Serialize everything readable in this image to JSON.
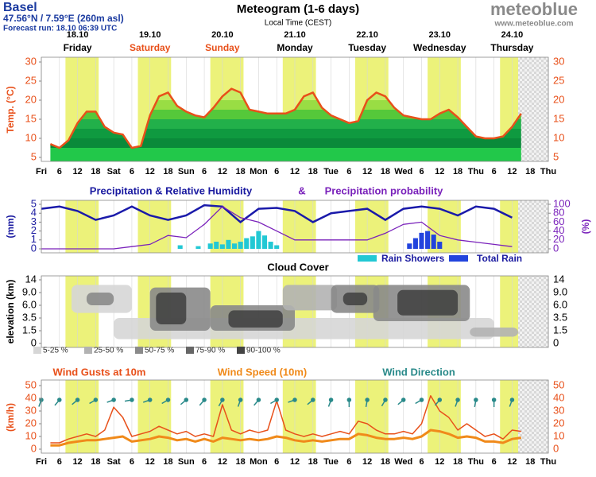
{
  "header": {
    "place": "Basel",
    "coords": "47.56°N / 7.59°E (260m asl)",
    "run": "Forecast run: 18.10 06:39 UTC",
    "title": "Meteogram (1-6 days)",
    "subtitle": "Local Time (CEST)",
    "logo": "meteoblue",
    "url": "www.meteoblue.com"
  },
  "days": [
    {
      "date": "18.10",
      "name": "Friday",
      "color": "#000000"
    },
    {
      "date": "19.10",
      "name": "Saturday",
      "color": "#e8501a"
    },
    {
      "date": "20.10",
      "name": "Sunday",
      "color": "#e8501a"
    },
    {
      "date": "21.10",
      "name": "Monday",
      "color": "#000000"
    },
    {
      "date": "22.10",
      "name": "Tuesday",
      "color": "#000000"
    },
    {
      "date": "23.10",
      "name": "Wednesday",
      "color": "#000000"
    },
    {
      "date": "24.10",
      "name": "Thursday",
      "color": "#000000"
    }
  ],
  "x_axis": {
    "xlim": [
      0,
      168
    ],
    "daylight": [
      8,
      19
    ],
    "forecast_end_hour": 158,
    "xticks": [
      {
        "value": 0,
        "label": "Fri"
      },
      {
        "value": 6,
        "label": "6"
      },
      {
        "value": 12,
        "label": "12"
      },
      {
        "value": 18,
        "label": "18"
      },
      {
        "value": 24,
        "label": "Sat"
      },
      {
        "value": 30,
        "label": "6"
      },
      {
        "value": 36,
        "label": "12"
      },
      {
        "value": 42,
        "label": "18"
      },
      {
        "value": 48,
        "label": "Sun"
      },
      {
        "value": 54,
        "label": "6"
      },
      {
        "value": 60,
        "label": "12"
      },
      {
        "value": 66,
        "label": "18"
      },
      {
        "value": 72,
        "label": "Mon"
      },
      {
        "value": 78,
        "label": "6"
      },
      {
        "value": 84,
        "label": "12"
      },
      {
        "value": 90,
        "label": "18"
      },
      {
        "value": 96,
        "label": "Tue"
      },
      {
        "value": 102,
        "label": "6"
      },
      {
        "value": 108,
        "label": "12"
      },
      {
        "value": 114,
        "label": "18"
      },
      {
        "value": 120,
        "label": "Wed"
      },
      {
        "value": 126,
        "label": "6"
      },
      {
        "value": 132,
        "label": "12"
      },
      {
        "value": 138,
        "label": "18"
      },
      {
        "value": 144,
        "label": "Thu"
      },
      {
        "value": 150,
        "label": "6"
      },
      {
        "value": 156,
        "label": "12"
      },
      {
        "value": 162,
        "label": "18"
      },
      {
        "value": 168,
        "label": "Thu"
      }
    ]
  },
  "chart_data": [
    {
      "type": "line",
      "ylabel": "Temp. (°C)",
      "ylim": [
        5,
        30
      ],
      "yticks": [
        5,
        10,
        15,
        20,
        25,
        30
      ],
      "tick_color": "#e8501a",
      "series": [
        {
          "color": "#e8501a",
          "x": [
            3,
            6,
            9,
            12,
            15,
            18,
            21,
            24,
            27,
            30,
            33,
            36,
            39,
            42,
            45,
            48,
            51,
            54,
            57,
            60,
            63,
            66,
            69,
            72,
            75,
            78,
            81,
            84,
            87,
            90,
            93,
            96,
            99,
            102,
            105,
            108,
            111,
            114,
            117,
            120,
            123,
            126,
            129,
            132,
            135,
            138,
            141,
            144,
            147,
            150,
            153,
            156,
            159
          ],
          "values": [
            8.5,
            7.5,
            9.5,
            14,
            17,
            17,
            13,
            11.5,
            11,
            7.5,
            8,
            16,
            21,
            22,
            18.5,
            17,
            16,
            15.5,
            18,
            21,
            23,
            22,
            17.5,
            17,
            16.5,
            16.5,
            16.5,
            17.5,
            21,
            22,
            18,
            16,
            15,
            14,
            14.5,
            20,
            22,
            21,
            18,
            16,
            15.5,
            15,
            15,
            16.5,
            17.5,
            15.5,
            13,
            10.5,
            10,
            10,
            10.5,
            13,
            16.5
          ]
        }
      ]
    },
    {
      "type": "bar",
      "title": "Precipitation & Relative Humidity",
      "title_and": "&",
      "title2": "Precipitation probability",
      "ylabel": "(mm)",
      "y2label": "(%)",
      "ylim": [
        0,
        5
      ],
      "yticks": [
        0,
        1,
        2,
        3,
        4,
        5
      ],
      "y2lim": [
        0,
        100
      ],
      "y2ticks": [
        0,
        20,
        40,
        60,
        80,
        100
      ],
      "tick_color": "#1a1aa0",
      "tick2_color": "#7a22bb",
      "series": [
        {
          "name": "Rain Showers",
          "color": "#22c8d4",
          "x": [
            46,
            52,
            56,
            58,
            60,
            62,
            64,
            66,
            68,
            70,
            72,
            74,
            76,
            78
          ],
          "values": [
            0.4,
            0.3,
            0.6,
            0.8,
            0.5,
            1.0,
            0.6,
            0.8,
            1.2,
            1.4,
            2.0,
            1.5,
            0.8,
            0.4
          ]
        },
        {
          "name": "Total Rain",
          "color": "#2244dd",
          "x": [
            122,
            124,
            126,
            128,
            130,
            132
          ],
          "values": [
            0.6,
            1.2,
            1.8,
            2.0,
            1.6,
            0.8
          ]
        },
        {
          "kind": "line",
          "axis": "y2",
          "color": "#1a1aaa",
          "x": [
            0,
            6,
            12,
            18,
            24,
            30,
            36,
            42,
            48,
            54,
            60,
            66,
            72,
            78,
            84,
            90,
            96,
            102,
            108,
            114,
            120,
            126,
            132,
            138,
            144,
            150,
            156
          ],
          "values": [
            90,
            95,
            85,
            65,
            75,
            95,
            75,
            65,
            75,
            98,
            95,
            60,
            90,
            92,
            85,
            60,
            80,
            85,
            90,
            65,
            90,
            95,
            90,
            75,
            95,
            90,
            70
          ]
        },
        {
          "kind": "line",
          "axis": "y2",
          "color": "#7a22bb",
          "x": [
            0,
            6,
            12,
            18,
            24,
            30,
            36,
            42,
            48,
            54,
            60,
            66,
            72,
            78,
            84,
            90,
            96,
            102,
            108,
            114,
            120,
            126,
            132,
            138,
            144,
            150,
            156
          ],
          "values": [
            0,
            0,
            0,
            0,
            0,
            5,
            10,
            30,
            25,
            55,
            95,
            70,
            60,
            40,
            20,
            20,
            20,
            20,
            20,
            35,
            55,
            60,
            30,
            20,
            15,
            10,
            5
          ]
        }
      ]
    },
    {
      "type": "heatmap",
      "title": "Cloud Cover",
      "ylabel": "elevation (km)",
      "ylim": [
        0,
        14
      ],
      "yticks": [
        0,
        1.5,
        3.5,
        {
          "value": 6,
          "label": "6.0"
        },
        {
          "value": 9,
          "label": "9.0"
        },
        14
      ],
      "levels": [
        {
          "label": "5-25 %",
          "color": "#d6d6d6"
        },
        {
          "label": "25-50 %",
          "color": "#b2b2b2"
        },
        {
          "label": "50-75 %",
          "color": "#8a8a8a"
        },
        {
          "label": "75-90 %",
          "color": "#666666"
        },
        {
          "label": "90-100 %",
          "color": "#444444"
        }
      ],
      "patches": [
        {
          "start": 10,
          "end": 30,
          "bottom": 4.5,
          "top": 12,
          "level": 0
        },
        {
          "start": 15,
          "end": 24,
          "bottom": 6,
          "top": 9,
          "level": 2
        },
        {
          "start": 24,
          "end": 150,
          "bottom": 0.5,
          "top": 3.5,
          "level": 0
        },
        {
          "start": 36,
          "end": 56,
          "bottom": 1.5,
          "top": 11,
          "level": 2
        },
        {
          "start": 38,
          "end": 48,
          "bottom": 2.5,
          "top": 9,
          "level": 4
        },
        {
          "start": 56,
          "end": 84,
          "bottom": 1.5,
          "top": 6,
          "level": 2
        },
        {
          "start": 62,
          "end": 80,
          "bottom": 2,
          "top": 5,
          "level": 4
        },
        {
          "start": 80,
          "end": 98,
          "bottom": 5,
          "top": 12,
          "level": 1
        },
        {
          "start": 96,
          "end": 112,
          "bottom": 4.5,
          "top": 12,
          "level": 2
        },
        {
          "start": 100,
          "end": 108,
          "bottom": 6,
          "top": 9,
          "level": 4
        },
        {
          "start": 110,
          "end": 142,
          "bottom": 3,
          "top": 12,
          "level": 2
        },
        {
          "start": 118,
          "end": 138,
          "bottom": 4,
          "top": 10,
          "level": 4
        },
        {
          "start": 142,
          "end": 158,
          "bottom": 0.8,
          "top": 2,
          "level": 1
        }
      ]
    },
    {
      "type": "line",
      "ylabel": "(km/h)",
      "ylim": [
        0,
        50
      ],
      "yticks": [
        0,
        10,
        20,
        30,
        40,
        50
      ],
      "tick_color": "#e8501a",
      "series": [
        {
          "name": "Wind Gusts at 10m",
          "color": "#e8501a",
          "width": 1.5,
          "x": [
            3,
            6,
            9,
            12,
            15,
            18,
            21,
            24,
            27,
            30,
            33,
            36,
            39,
            42,
            45,
            48,
            51,
            54,
            57,
            60,
            63,
            66,
            69,
            72,
            75,
            78,
            81,
            84,
            87,
            90,
            93,
            96,
            99,
            102,
            105,
            108,
            111,
            114,
            117,
            120,
            123,
            126,
            129,
            132,
            135,
            138,
            141,
            144,
            147,
            150,
            153,
            156,
            159
          ],
          "values": [
            5,
            5,
            8,
            10,
            12,
            10,
            15,
            33,
            25,
            10,
            12,
            14,
            18,
            15,
            12,
            14,
            10,
            12,
            10,
            35,
            15,
            12,
            15,
            13,
            15,
            38,
            15,
            12,
            10,
            12,
            10,
            12,
            14,
            12,
            22,
            20,
            15,
            12,
            12,
            14,
            12,
            20,
            42,
            30,
            25,
            15,
            20,
            15,
            10,
            12,
            8,
            15,
            14
          ]
        },
        {
          "name": "Wind Speed (10m)",
          "color": "#f08a1a",
          "width": 3,
          "x": [
            3,
            6,
            9,
            12,
            15,
            18,
            21,
            24,
            27,
            30,
            33,
            36,
            39,
            42,
            45,
            48,
            51,
            54,
            57,
            60,
            63,
            66,
            69,
            72,
            75,
            78,
            81,
            84,
            87,
            90,
            93,
            96,
            99,
            102,
            105,
            108,
            111,
            114,
            117,
            120,
            123,
            126,
            129,
            132,
            135,
            138,
            141,
            144,
            147,
            150,
            153,
            156,
            159
          ],
          "values": [
            3,
            3,
            5,
            6,
            7,
            7,
            8,
            9,
            10,
            6,
            7,
            8,
            10,
            9,
            7,
            8,
            6,
            8,
            6,
            9,
            8,
            7,
            8,
            7,
            8,
            10,
            9,
            7,
            6,
            7,
            6,
            7,
            8,
            8,
            12,
            11,
            9,
            8,
            8,
            9,
            8,
            10,
            15,
            14,
            12,
            9,
            10,
            9,
            6,
            6,
            5,
            8,
            9
          ]
        },
        {
          "name": "Wind Direction",
          "kind": "arrows",
          "color": "#2a8a8a",
          "x": [
            0,
            6,
            12,
            18,
            24,
            30,
            36,
            42,
            48,
            54,
            60,
            66,
            72,
            78,
            84,
            90,
            96,
            102,
            108,
            114,
            120,
            126,
            132,
            138,
            144,
            150,
            156
          ],
          "values": [
            200,
            220,
            230,
            240,
            250,
            260,
            250,
            240,
            230,
            220,
            210,
            200,
            220,
            240,
            250,
            230,
            200,
            180,
            190,
            210,
            230,
            240,
            220,
            200,
            190,
            180,
            200
          ]
        }
      ]
    }
  ]
}
